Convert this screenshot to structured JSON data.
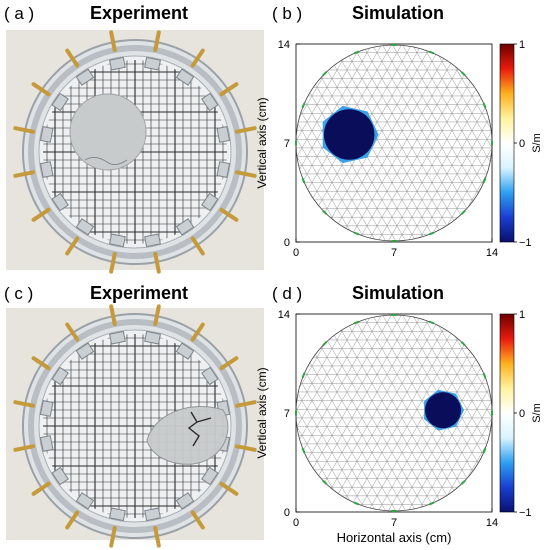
{
  "panels": [
    {
      "id": "a",
      "label": "( a )",
      "title": "Experiment",
      "kind": "photo",
      "object_shape": "circle",
      "object_position": "left",
      "colors": {
        "tray": "#cfd3d6",
        "grid": "#2b2b2b",
        "object": "#c8cbcc",
        "connector": "#c49a3a"
      }
    },
    {
      "id": "b",
      "label": "( b )",
      "title": "Simulation",
      "kind": "simulation",
      "ylabel": "Vertical axis (cm)",
      "xlabel": "",
      "x_ticks": [
        "0",
        "7",
        "14"
      ],
      "y_ticks": [
        "0",
        "7",
        "14"
      ],
      "colorbar_ticks": [
        "1",
        "0",
        "−1"
      ],
      "colorbar_unit": "S/m",
      "inclusion": {
        "center_cm": [
          3.8,
          7.6
        ],
        "radius_cm": 2.1,
        "value": -1
      }
    },
    {
      "id": "c",
      "label": "( c )",
      "title": "Experiment",
      "kind": "photo",
      "object_shape": "leaf",
      "object_position": "right",
      "colors": {
        "tray": "#cfd3d6",
        "grid": "#2b2b2b",
        "object": "#c8cbcc",
        "connector": "#c49a3a"
      }
    },
    {
      "id": "d",
      "label": "( d )",
      "title": "Simulation",
      "kind": "simulation",
      "ylabel": "Vertical axis (cm)",
      "xlabel": "Horizontal axis (cm)",
      "x_ticks": [
        "0",
        "7",
        "14"
      ],
      "y_ticks": [
        "0",
        "7",
        "14"
      ],
      "colorbar_ticks": [
        "1",
        "0",
        "−1"
      ],
      "colorbar_unit": "S/m",
      "inclusion": {
        "center_cm": [
          10.5,
          7.2
        ],
        "radius_cm": 1.5,
        "value": -1
      }
    }
  ],
  "colormap": [
    "#0b0f6e",
    "#1a3fd0",
    "#2fa0f0",
    "#d9f4ff",
    "#ffffff",
    "#fff2a0",
    "#ffb020",
    "#e81a0e",
    "#6b0000"
  ],
  "mesh_color": "#7a7a7a",
  "electrode_color": "#2da640",
  "inclusion_color": "#0a0e5a",
  "inclusion_edge_color": "#3ba0e8"
}
